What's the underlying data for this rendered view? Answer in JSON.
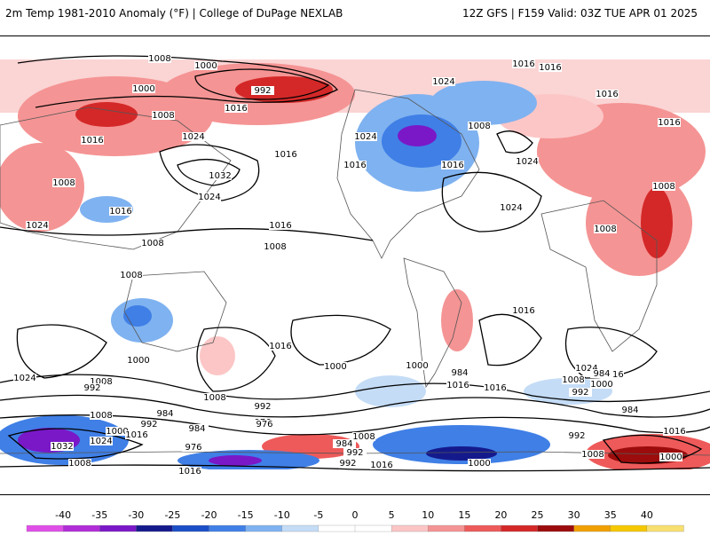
{
  "header": {
    "title_left": "2m Temp 1981-2010 Anomaly (°F) | College of DuPage NEXLAB",
    "title_right": "12Z GFS | F159 Valid: 03Z TUE APR 01 2025"
  },
  "isobar_labels": [
    "1008",
    "1000",
    "992",
    "1000",
    "1008",
    "1016",
    "1024",
    "1016",
    "1016",
    "1024",
    "1032",
    "1024",
    "1016",
    "1008",
    "1016",
    "1016",
    "1016",
    "1024",
    "1016",
    "1008",
    "1016",
    "1024",
    "1024",
    "1008",
    "1008",
    "1008",
    "1008",
    "1016",
    "1024",
    "1008",
    "1016",
    "1000",
    "1024",
    "1008",
    "992",
    "1008",
    "992",
    "984",
    "976",
    "1000",
    "1016",
    "1024",
    "992",
    "984",
    "976",
    "984",
    "1032",
    "1008",
    "1016",
    "992",
    "1008",
    "1000",
    "1000",
    "1016",
    "1024",
    "1016",
    "1008",
    "992",
    "984",
    "1000",
    "1016",
    "1008",
    "1016",
    "1016",
    "984",
    "976",
    "1016",
    "992",
    "984",
    "1000",
    "1016",
    "992",
    "1008",
    "1000"
  ],
  "legend": {
    "ticks": [
      "-40",
      "-35",
      "-30",
      "-25",
      "-20",
      "-15",
      "-10",
      "-5",
      "0",
      "5",
      "10",
      "15",
      "20",
      "25",
      "30",
      "35",
      "40"
    ],
    "colors": [
      "#e04ee8",
      "#b02dd8",
      "#7a18c8",
      "#141a8c",
      "#1a4fc8",
      "#3f7fe6",
      "#7fb2f0",
      "#c4dcf6",
      "#ffffff",
      "#ffffff",
      "#fcc6c6",
      "#f59494",
      "#ee5a5a",
      "#d42828",
      "#9c0c0c",
      "#f0a000",
      "#f5c800",
      "#f8e070"
    ]
  }
}
